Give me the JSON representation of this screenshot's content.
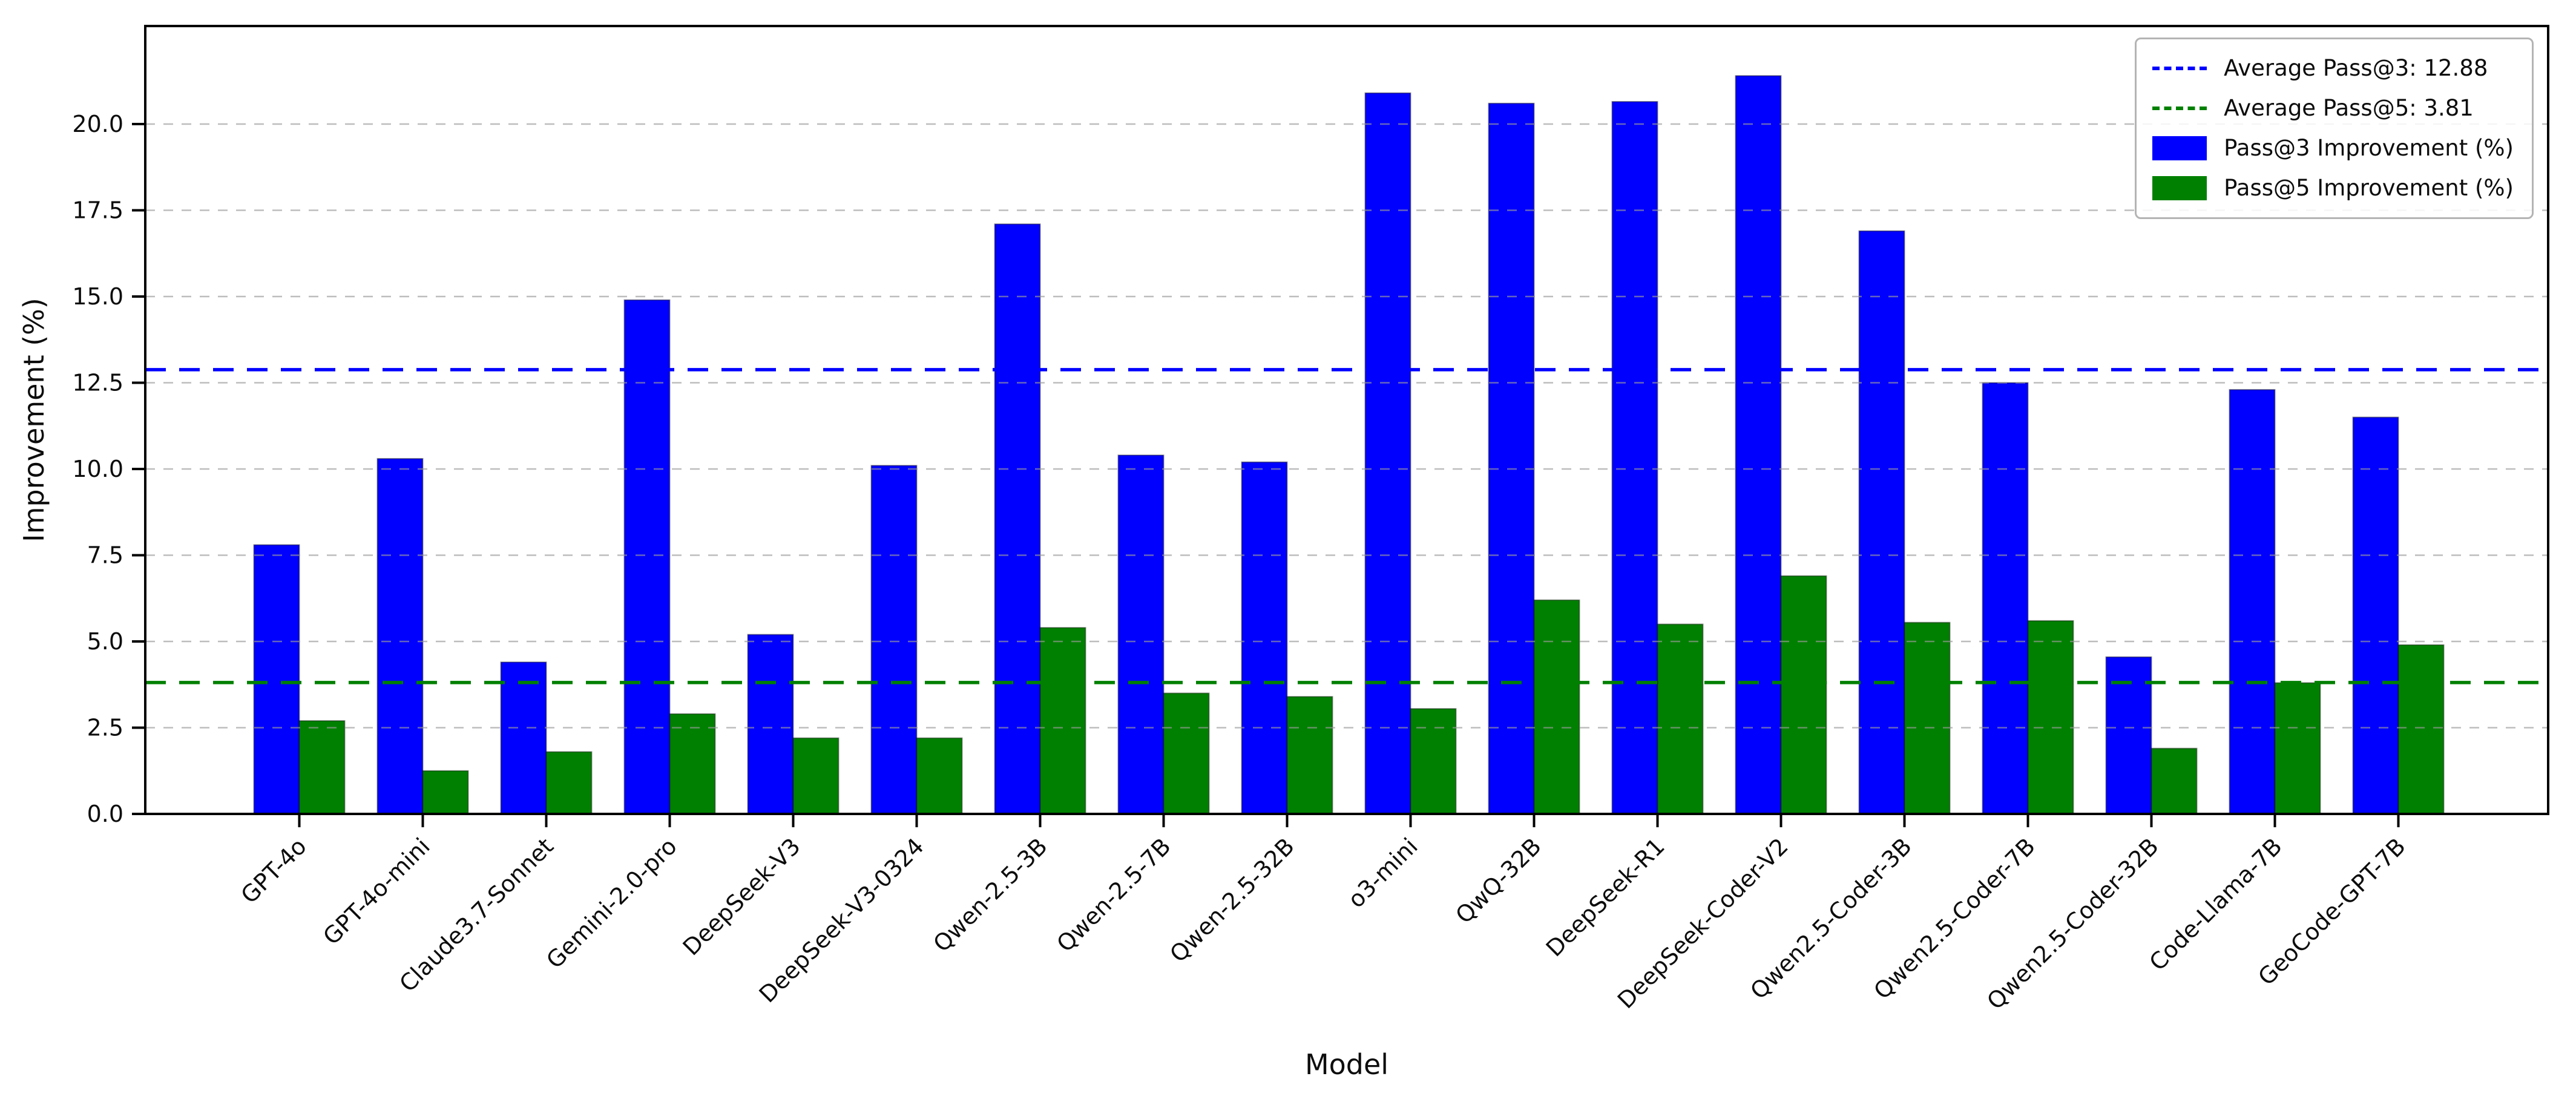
{
  "figure": {
    "xlabel": "Model",
    "ylabel": "Improvement (%)"
  },
  "legend": {
    "items": [
      {
        "name": "avg-pass3",
        "label": "Average Pass@3: 12.88",
        "swatch": "dashed-line",
        "color": "#0000ff"
      },
      {
        "name": "avg-pass5",
        "label": "Average Pass@5: 3.81",
        "swatch": "dashed-line",
        "color": "#008000"
      },
      {
        "name": "pass3-bar",
        "label": "Pass@3 Improvement (%)",
        "swatch": "rect",
        "color": "#0000ff"
      },
      {
        "name": "pass5-bar",
        "label": "Pass@5 Improvement (%)",
        "swatch": "rect",
        "color": "#008000"
      }
    ]
  },
  "chart_data": {
    "type": "bar",
    "title": "",
    "xlabel": "Model",
    "ylabel": "Improvement (%)",
    "categories": [
      "GPT-4o",
      "GPT-4o-mini",
      "Claude3.7-Sonnet",
      "Gemini-2.0-pro",
      "DeepSeek-V3",
      "DeepSeek-V3-0324",
      "Qwen-2.5-3B",
      "Qwen-2.5-7B",
      "Qwen-2.5-32B",
      "o3-mini",
      "QwQ-32B",
      "DeepSeek-R1",
      "DeepSeek-Coder-V2",
      "Qwen2.5-Coder-3B",
      "Qwen2.5-Coder-7B",
      "Qwen2.5-Coder-32B",
      "Code-Llama-7B",
      "GeoCode-GPT-7B"
    ],
    "series": [
      {
        "name": "Pass@3 Improvement (%)",
        "color": "#0000ff",
        "values": [
          7.8,
          10.3,
          4.4,
          14.9,
          5.2,
          10.1,
          17.1,
          10.4,
          10.2,
          20.9,
          20.6,
          20.65,
          21.4,
          16.9,
          12.5,
          4.55,
          12.3,
          11.5
        ]
      },
      {
        "name": "Pass@5 Improvement (%)",
        "color": "#008000",
        "values": [
          2.7,
          1.25,
          1.8,
          2.9,
          2.2,
          2.2,
          5.4,
          3.5,
          3.4,
          3.05,
          6.2,
          5.5,
          6.9,
          5.55,
          5.6,
          1.9,
          3.8,
          4.9
        ]
      }
    ],
    "avg_lines": [
      {
        "label": "Average Pass@3: 12.88",
        "value": 12.88,
        "color": "#0000ff"
      },
      {
        "label": "Average Pass@5: 3.81",
        "value": 3.81,
        "color": "#008000"
      }
    ],
    "yticks": [
      0.0,
      2.5,
      5.0,
      7.5,
      10.0,
      12.5,
      15.0,
      17.5,
      20.0
    ],
    "ylim": [
      0,
      22.84
    ],
    "grid": true,
    "grid_style": "dashed",
    "legend_position": "upper right",
    "background": "#ffffff"
  }
}
